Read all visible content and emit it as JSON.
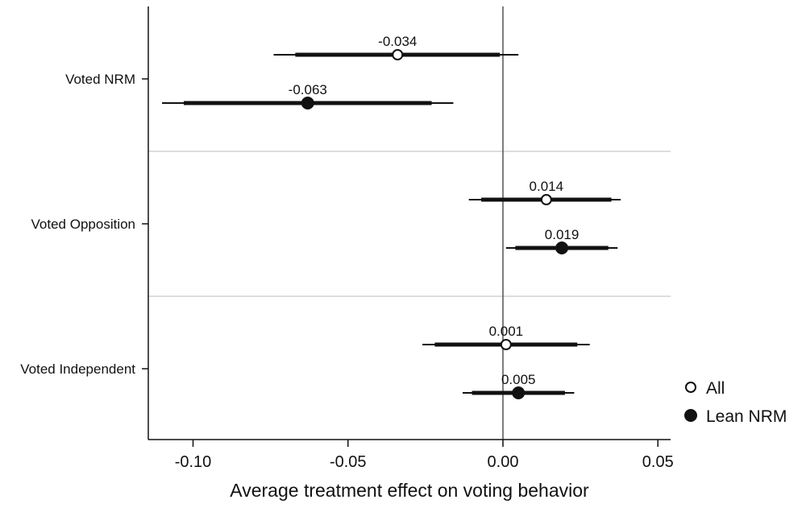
{
  "chart_data": {
    "type": "scatter",
    "subtype": "coefficient-plot",
    "title": "",
    "xlabel": "Average treatment effect on voting behavior",
    "ylabel": "",
    "xlim": [
      -0.115,
      0.055
    ],
    "xticks": [
      -0.1,
      -0.05,
      0.0,
      0.05
    ],
    "xtick_labels": [
      "-0.10",
      "-0.05",
      "0.00",
      "0.05"
    ],
    "reference_line_x": 0,
    "grid": false,
    "legend_position": "right",
    "categories": [
      "Voted NRM",
      "Voted Opposition",
      "Voted Independent"
    ],
    "series": [
      {
        "name": "All",
        "marker": "hollow-circle",
        "color": "#111111",
        "points": [
          {
            "category": "Voted NRM",
            "estimate": -0.034,
            "label": "-0.034",
            "ci90": [
              -0.067,
              -0.001
            ],
            "ci95": [
              -0.074,
              0.005
            ]
          },
          {
            "category": "Voted Opposition",
            "estimate": 0.014,
            "label": "0.014",
            "ci90": [
              -0.007,
              0.035
            ],
            "ci95": [
              -0.011,
              0.038
            ]
          },
          {
            "category": "Voted Independent",
            "estimate": 0.001,
            "label": "0.001",
            "ci90": [
              -0.022,
              0.024
            ],
            "ci95": [
              -0.026,
              0.028
            ]
          }
        ]
      },
      {
        "name": "Lean NRM",
        "marker": "filled-circle",
        "color": "#111111",
        "points": [
          {
            "category": "Voted NRM",
            "estimate": -0.063,
            "label": "-0.063",
            "ci90": [
              -0.103,
              -0.023
            ],
            "ci95": [
              -0.11,
              -0.016
            ]
          },
          {
            "category": "Voted Opposition",
            "estimate": 0.019,
            "label": "0.019",
            "ci90": [
              0.004,
              0.034
            ],
            "ci95": [
              0.001,
              0.037
            ]
          },
          {
            "category": "Voted Independent",
            "estimate": 0.005,
            "label": "0.005",
            "ci90": [
              -0.01,
              0.02
            ],
            "ci95": [
              -0.013,
              0.023
            ]
          }
        ]
      }
    ]
  }
}
